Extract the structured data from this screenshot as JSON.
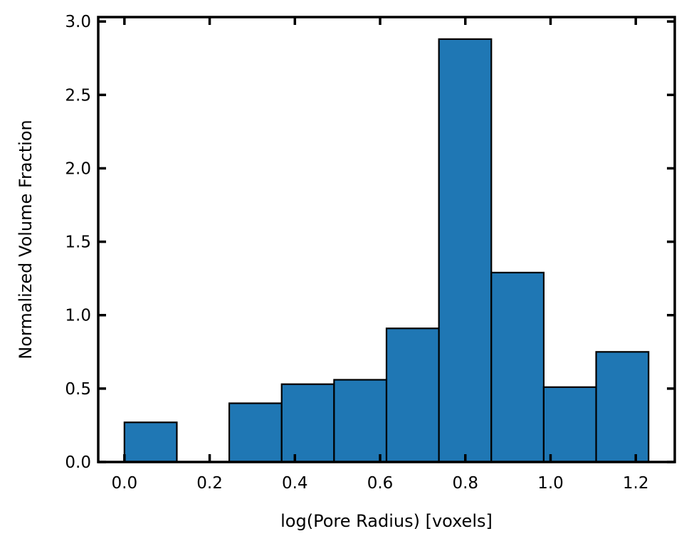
{
  "chart_data": {
    "type": "bar",
    "title": "",
    "xlabel": "log(Pore Radius) [voxels]",
    "ylabel": "Normalized Volume Fraction",
    "xlim": [
      -0.0615,
      1.2915
    ],
    "ylim": [
      0.0,
      3.03
    ],
    "xticks": [
      0.0,
      0.2,
      0.4,
      0.6,
      0.8,
      1.0,
      1.2
    ],
    "xtick_labels": [
      "0.0",
      "0.2",
      "0.4",
      "0.6",
      "0.8",
      "1.0",
      "1.2"
    ],
    "yticks": [
      0.0,
      0.5,
      1.0,
      1.5,
      2.0,
      2.5,
      3.0
    ],
    "ytick_labels": [
      "0.0",
      "0.5",
      "1.0",
      "1.5",
      "2.0",
      "2.5",
      "3.0"
    ],
    "bin_edges": [
      0.0,
      0.123,
      0.246,
      0.369,
      0.492,
      0.615,
      0.738,
      0.861,
      0.984,
      1.107,
      1.23
    ],
    "values": [
      0.27,
      0.0,
      0.4,
      0.53,
      0.56,
      0.91,
      2.88,
      1.29,
      0.51,
      0.75
    ],
    "bar_color": "#1f77b4",
    "edge_color": "#000000",
    "grid": false,
    "tick_direction": "in",
    "ticks_on_all_sides": true
  }
}
